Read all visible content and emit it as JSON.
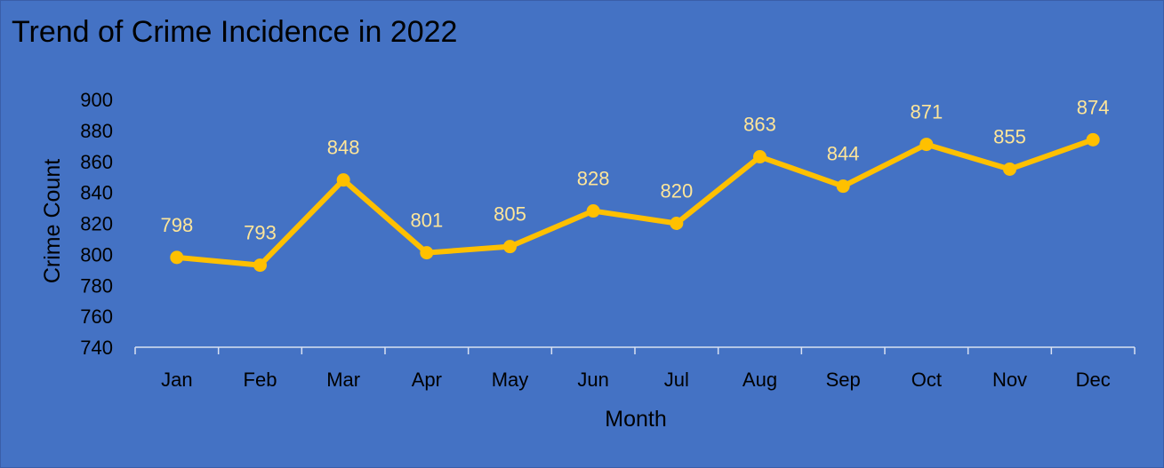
{
  "chart_data": {
    "type": "line",
    "title": "Trend of Crime Incidence in 2022",
    "xlabel": "Month",
    "ylabel": "Crime Count",
    "categories": [
      "Jan",
      "Feb",
      "Mar",
      "Apr",
      "May",
      "Jun",
      "Jul",
      "Aug",
      "Sep",
      "Oct",
      "Nov",
      "Dec"
    ],
    "series": [
      {
        "values": [
          798,
          793,
          848,
          801,
          805,
          828,
          820,
          863,
          844,
          871,
          855,
          874
        ]
      }
    ],
    "ylim": [
      740,
      900
    ],
    "yticks": [
      740,
      760,
      780,
      800,
      820,
      840,
      860,
      880,
      900
    ],
    "grid": false,
    "legend": "none",
    "data_labels": true,
    "colors": {
      "background": "#4472c4",
      "line": "#ffc000",
      "data_label": "#ffe699",
      "axis": "#d9e1f2",
      "text": "#000000"
    }
  }
}
